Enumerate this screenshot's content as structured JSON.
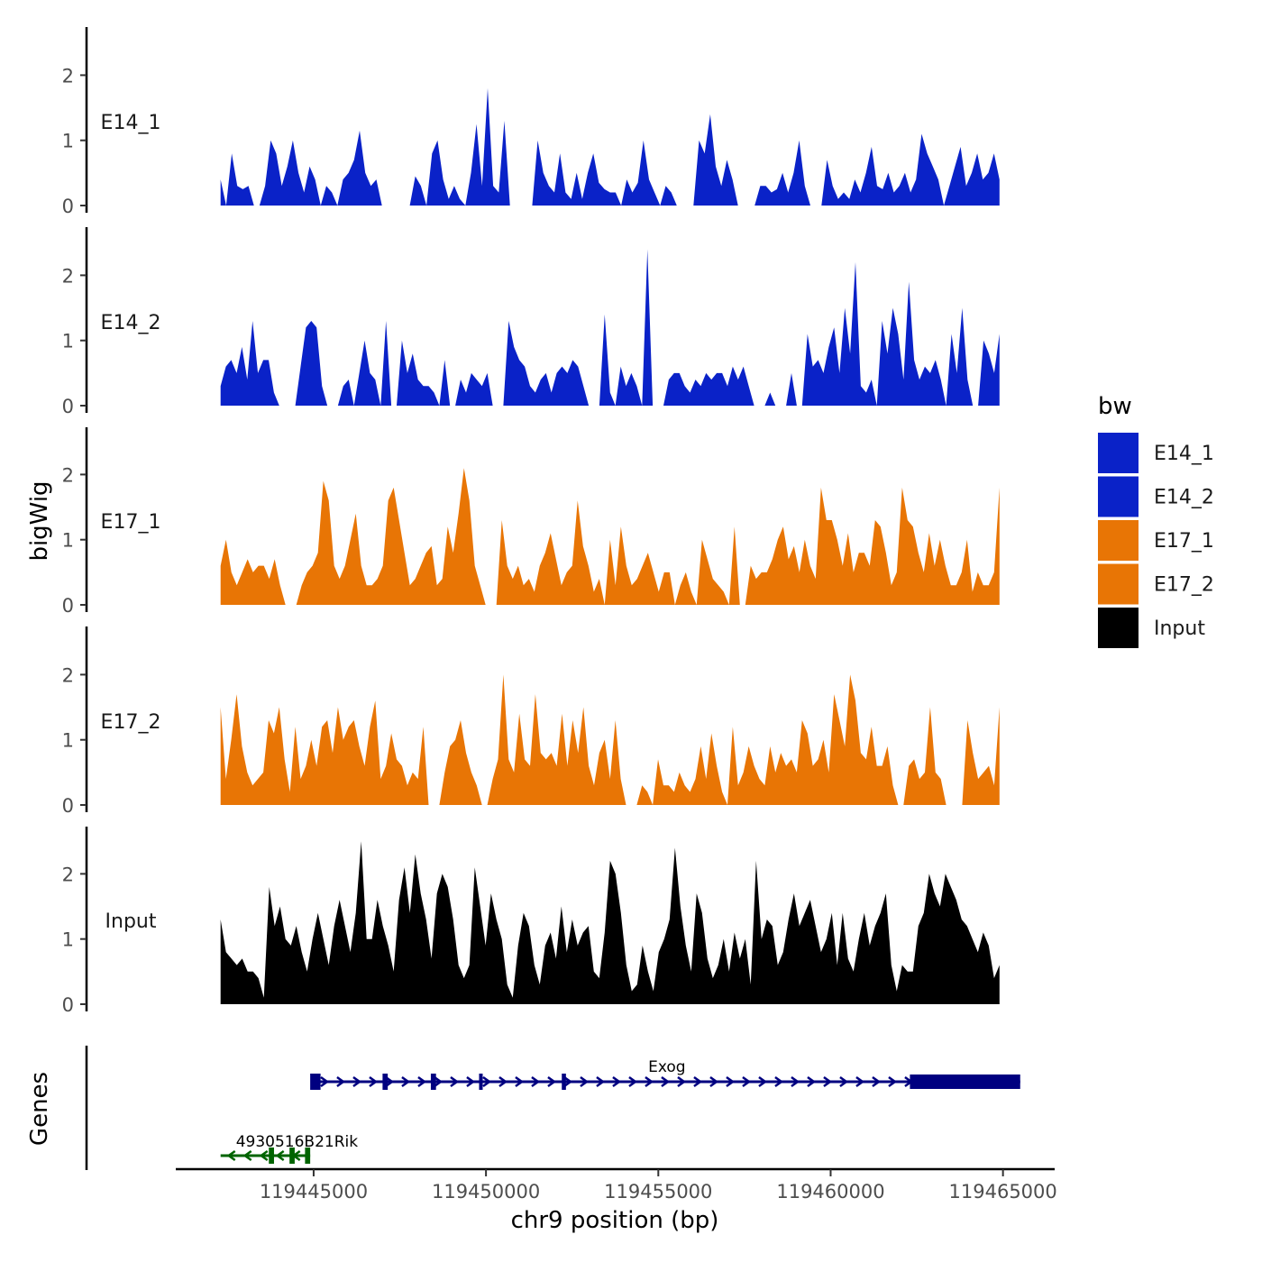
{
  "chart_data": {
    "type": "area",
    "title": "",
    "ylabel": "bigWig",
    "genes_label": "Genes",
    "xlabel": "chr9 position (bp)",
    "chromosome": "chr9",
    "xlim": [
      119441000,
      119466500
    ],
    "ylim": [
      0,
      2.6
    ],
    "x_ticks": [
      119445000,
      119450000,
      119455000,
      119460000,
      119465000
    ],
    "x_tick_labels": [
      "119445000",
      "119450000",
      "119455000",
      "119460000",
      "119465000"
    ],
    "y_ticks": [
      0,
      1,
      2
    ],
    "y_tick_labels": [
      "0",
      "1",
      "2"
    ],
    "legend": {
      "title": "bw",
      "position": "right",
      "entries": [
        {
          "label": "E14_1",
          "color": "#0a22c8"
        },
        {
          "label": "E14_2",
          "color": "#0a22c8"
        },
        {
          "label": "E17_1",
          "color": "#e87505"
        },
        {
          "label": "E17_2",
          "color": "#e87505"
        },
        {
          "label": "Input",
          "color": "#000000"
        }
      ]
    },
    "series": [
      {
        "name": "E14_1",
        "color": "#0a22c8",
        "x_start": 119442300,
        "x_end": 119464900,
        "values": [
          0.4,
          0,
          0.8,
          0.3,
          0.25,
          0.3,
          0,
          0,
          0.3,
          1.0,
          0.8,
          0.3,
          0.6,
          1.0,
          0.5,
          0.2,
          0.6,
          0.4,
          0,
          0.3,
          0.2,
          0,
          0.4,
          0.5,
          0.7,
          1.15,
          0.5,
          0.3,
          0.4,
          0,
          0,
          0,
          0,
          0,
          0,
          0.45,
          0.3,
          0,
          0.8,
          1.0,
          0.4,
          0.1,
          0.3,
          0.1,
          0,
          0.5,
          1.25,
          0.3,
          1.8,
          0.3,
          0.2,
          1.3,
          0,
          0,
          0,
          0,
          0,
          1.0,
          0.5,
          0.3,
          0.2,
          0.8,
          0.2,
          0.1,
          0.5,
          0.1,
          0.5,
          0.8,
          0.35,
          0.25,
          0.2,
          0.2,
          0,
          0.4,
          0.2,
          0.35,
          1.0,
          0.4,
          0.2,
          0,
          0.3,
          0.2,
          0,
          0,
          0,
          0,
          1.0,
          0.8,
          1.4,
          0.6,
          0.3,
          0.7,
          0.4,
          0,
          0,
          0,
          0,
          0.3,
          0.3,
          0.2,
          0.25,
          0.5,
          0.2,
          0.5,
          1.0,
          0.3,
          0,
          0,
          0,
          0.7,
          0.3,
          0.1,
          0.2,
          0.1,
          0.4,
          0.2,
          0.5,
          0.9,
          0.3,
          0.25,
          0.5,
          0.2,
          0.3,
          0.5,
          0.2,
          0.4,
          1.1,
          0.8,
          0.6,
          0.4,
          0,
          0.3,
          0.6,
          0.9,
          0.3,
          0.5,
          0.8,
          0.4,
          0.5,
          0.8,
          0.4
        ]
      },
      {
        "name": "E14_2",
        "color": "#0a22c8",
        "x_start": 119442300,
        "x_end": 119464900,
        "values": [
          0.3,
          0.6,
          0.7,
          0.5,
          0.9,
          0.4,
          1.3,
          0.5,
          0.7,
          0.7,
          0.2,
          0,
          0,
          0,
          0,
          0.6,
          1.2,
          1.3,
          1.2,
          0.3,
          0,
          0,
          0,
          0.3,
          0.4,
          0,
          0.5,
          1.0,
          0.5,
          0.4,
          0,
          1.3,
          0,
          0,
          1.0,
          0.5,
          0.8,
          0.4,
          0.3,
          0.3,
          0.2,
          0,
          0.7,
          0,
          0,
          0.4,
          0.2,
          0.5,
          0.4,
          0.3,
          0.5,
          0,
          0,
          0,
          1.3,
          0.9,
          0.7,
          0.6,
          0.3,
          0.2,
          0.4,
          0.5,
          0.2,
          0.5,
          0.6,
          0.5,
          0.7,
          0.6,
          0.3,
          0,
          0,
          0,
          1.4,
          0.2,
          0,
          0.6,
          0.3,
          0.5,
          0.3,
          0,
          2.4,
          0,
          0,
          0,
          0.4,
          0.5,
          0.5,
          0.3,
          0.2,
          0.4,
          0.3,
          0.5,
          0.4,
          0.5,
          0.5,
          0.3,
          0.6,
          0.4,
          0.6,
          0.3,
          0,
          0,
          0,
          0.2,
          0,
          0,
          0,
          0.5,
          0,
          0,
          1.1,
          0.6,
          0.7,
          0.5,
          0.9,
          1.2,
          0.5,
          1.5,
          0.8,
          2.2,
          0.3,
          0.2,
          0.4,
          0,
          1.3,
          0.8,
          1.5,
          1.1,
          0.4,
          1.9,
          0.7,
          0.4,
          0.6,
          0.5,
          0.7,
          0.4,
          0,
          1.1,
          0.5,
          1.5,
          0.4,
          0,
          0,
          1.0,
          0.8,
          0.5,
          1.1
        ]
      },
      {
        "name": "E17_1",
        "color": "#e87505",
        "x_start": 119442300,
        "x_end": 119464900,
        "values": [
          0.6,
          1.0,
          0.5,
          0.3,
          0.5,
          0.7,
          0.5,
          0.6,
          0.6,
          0.4,
          0.7,
          0.3,
          0,
          0,
          0,
          0.3,
          0.5,
          0.6,
          0.8,
          1.9,
          1.6,
          0.6,
          0.4,
          0.6,
          1.0,
          1.4,
          0.6,
          0.3,
          0.3,
          0.4,
          0.6,
          1.6,
          1.8,
          1.3,
          0.8,
          0.3,
          0.4,
          0.6,
          0.8,
          0.9,
          0.3,
          0.4,
          1.2,
          0.8,
          1.4,
          2.1,
          1.6,
          0.6,
          0.3,
          0,
          0,
          0,
          1.3,
          0.6,
          0.4,
          0.6,
          0.3,
          0.4,
          0.2,
          0.6,
          0.8,
          1.1,
          0.7,
          0.3,
          0.5,
          0.6,
          1.6,
          0.9,
          0.6,
          0.2,
          0.4,
          0,
          1.0,
          0.3,
          1.2,
          0.6,
          0.3,
          0.4,
          0.6,
          0.8,
          0.5,
          0.2,
          0.5,
          0.5,
          0,
          0.3,
          0.5,
          0.2,
          0,
          1.0,
          0.7,
          0.4,
          0.3,
          0.2,
          0,
          1.2,
          0,
          0,
          0.6,
          0.4,
          0.5,
          0.5,
          0.7,
          1.0,
          1.2,
          0.7,
          0.9,
          0.5,
          1.0,
          0.6,
          0.4,
          1.8,
          1.3,
          1.3,
          1.0,
          0.6,
          1.1,
          0.5,
          0.8,
          0.8,
          0.6,
          1.3,
          1.2,
          0.8,
          0.3,
          0.5,
          1.8,
          1.3,
          1.2,
          0.8,
          0.5,
          1.1,
          0.6,
          1.0,
          0.6,
          0.3,
          0.3,
          0.5,
          1.0,
          0.2,
          0.5,
          0.3,
          0.3,
          0.5,
          1.8
        ]
      },
      {
        "name": "E17_2",
        "color": "#e87505",
        "x_start": 119442300,
        "x_end": 119464900,
        "values": [
          1.5,
          0.4,
          1.0,
          1.7,
          0.9,
          0.5,
          0.3,
          0.4,
          0.5,
          1.3,
          1.1,
          1.5,
          0.7,
          0.2,
          1.2,
          0.4,
          0.6,
          1.0,
          0.6,
          1.2,
          1.3,
          0.8,
          1.5,
          1.0,
          1.2,
          1.3,
          0.9,
          0.6,
          1.2,
          1.6,
          0.4,
          0.6,
          1.1,
          0.7,
          0.6,
          0.3,
          0.5,
          0.4,
          1.2,
          0,
          0,
          0,
          0.5,
          0.9,
          1.0,
          1.3,
          0.8,
          0.5,
          0.3,
          0,
          0,
          0.4,
          0.7,
          2.0,
          0.7,
          0.5,
          1.4,
          0.7,
          0.6,
          1.7,
          0.8,
          0.7,
          0.8,
          0.6,
          1.4,
          0.6,
          1.3,
          0.8,
          1.5,
          0.6,
          0.3,
          0.8,
          1.0,
          0.4,
          1.3,
          0.4,
          0,
          0,
          0,
          0.3,
          0.2,
          0,
          0.7,
          0.3,
          0.3,
          0.2,
          0.5,
          0.3,
          0.2,
          0.4,
          0.9,
          0.4,
          1.1,
          0.6,
          0.2,
          0,
          1.2,
          0.3,
          0.5,
          0.9,
          0.6,
          0.4,
          0.3,
          0.9,
          0.5,
          0.8,
          0.6,
          0.7,
          0.5,
          1.3,
          1.1,
          0.6,
          0.7,
          1.0,
          0.5,
          1.7,
          1.3,
          0.9,
          2.0,
          1.6,
          0.8,
          0.7,
          1.2,
          0.6,
          0.6,
          0.9,
          0.3,
          0,
          0,
          0.6,
          0.7,
          0.4,
          0.5,
          1.5,
          0.5,
          0.4,
          0,
          0,
          0,
          0,
          1.3,
          0.8,
          0.4,
          0.5,
          0.6,
          0.3,
          1.5
        ]
      },
      {
        "name": "Input",
        "color": "#000000",
        "x_start": 119442300,
        "x_end": 119464900,
        "values": [
          1.3,
          0.8,
          0.7,
          0.6,
          0.7,
          0.5,
          0.5,
          0.4,
          0.1,
          1.8,
          1.2,
          1.5,
          1.0,
          0.9,
          1.2,
          0.8,
          0.5,
          1.0,
          1.4,
          1.0,
          0.6,
          1.2,
          1.6,
          1.2,
          0.8,
          1.4,
          2.5,
          1.0,
          1.0,
          1.6,
          1.2,
          0.9,
          0.5,
          1.6,
          2.1,
          1.4,
          2.3,
          1.7,
          1.3,
          0.7,
          1.7,
          2.0,
          1.8,
          1.3,
          0.6,
          0.4,
          0.6,
          2.1,
          1.5,
          0.9,
          1.7,
          1.3,
          1.0,
          0.3,
          0.1,
          0.9,
          1.4,
          1.2,
          0.6,
          0.3,
          0.9,
          1.1,
          0.7,
          1.5,
          0.8,
          1.3,
          0.9,
          1.1,
          1.2,
          0.5,
          0.4,
          1.1,
          2.2,
          2.0,
          1.4,
          0.6,
          0.2,
          0.3,
          0.9,
          0.5,
          0.2,
          0.8,
          1.0,
          1.3,
          2.4,
          1.5,
          0.9,
          0.5,
          1.7,
          1.4,
          0.7,
          0.4,
          0.6,
          1.0,
          0.5,
          1.1,
          0.7,
          1.0,
          0.3,
          2.2,
          1.0,
          1.3,
          1.2,
          0.6,
          0.8,
          1.3,
          1.7,
          1.2,
          1.4,
          1.6,
          1.2,
          0.8,
          1.0,
          1.4,
          0.6,
          1.4,
          0.7,
          0.5,
          1.0,
          1.4,
          0.9,
          1.2,
          1.4,
          1.7,
          0.6,
          0.2,
          0.6,
          0.5,
          0.5,
          1.2,
          1.4,
          2.0,
          1.7,
          1.5,
          2.0,
          1.8,
          1.6,
          1.3,
          1.2,
          1.0,
          0.8,
          1.1,
          0.9,
          0.4,
          0.6
        ]
      }
    ],
    "genes": [
      {
        "name": "Exog",
        "strand": "+",
        "start": 119445000,
        "end": 119465500,
        "color": "#000080",
        "exons": [
          {
            "start": 119444900,
            "end": 119445200
          },
          {
            "start": 119447000,
            "end": 119447150
          },
          {
            "start": 119448400,
            "end": 119448550
          },
          {
            "start": 119449800,
            "end": 119449880
          },
          {
            "start": 119452200,
            "end": 119452320
          },
          {
            "start": 119462300,
            "end": 119465500
          }
        ]
      },
      {
        "name": "4930516B21Rik",
        "strand": "-",
        "start": 119442300,
        "end": 119444900,
        "color": "#006400",
        "exons": [
          {
            "start": 119443700,
            "end": 119443850
          },
          {
            "start": 119444300,
            "end": 119444450
          },
          {
            "start": 119444750,
            "end": 119444900
          }
        ]
      }
    ]
  }
}
